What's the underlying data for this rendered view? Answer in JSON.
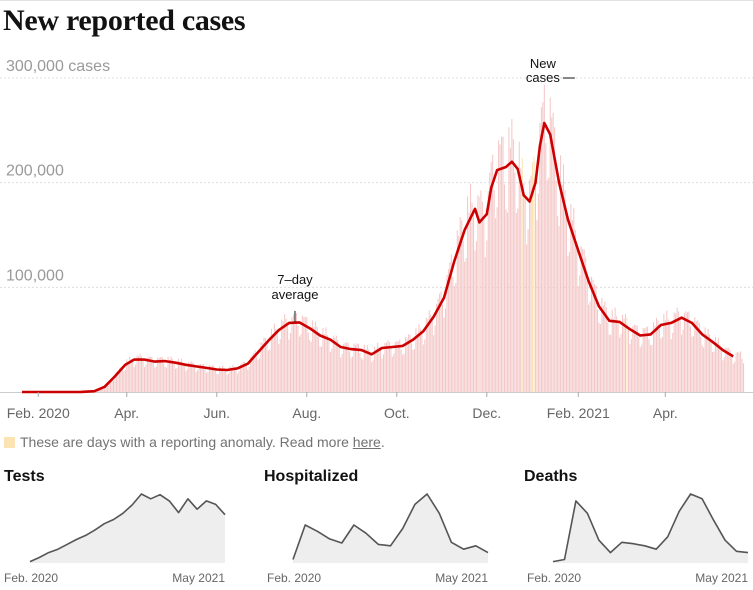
{
  "title": "New reported cases",
  "note": {
    "text": "These are days with a reporting anomaly. Read more ",
    "link": "here",
    "end": ".",
    "swatch_color": "#fbe3b3"
  },
  "colors": {
    "bar": "#f4c7c7",
    "anomaly": "#fbe3b3",
    "line": "#cc0000",
    "grid": "#dddddd",
    "mini_line": "#555555",
    "mini_fill": "#eeeeee"
  },
  "chart_data": [
    {
      "type": "bar",
      "title": "New reported cases",
      "y_unit_label": "cases",
      "ylim": [
        0,
        300000
      ],
      "y_ticks": [
        {
          "value": 300000,
          "label": "300,000 cases"
        },
        {
          "value": 200000,
          "label": "200,000"
        },
        {
          "value": 100000,
          "label": "100,000"
        }
      ],
      "x_range": [
        "2020-01-21",
        "2021-05-25"
      ],
      "x_ticks": [
        {
          "date": "2020-02-01",
          "label": "Feb. 2020"
        },
        {
          "date": "2020-04-01",
          "label": "Apr."
        },
        {
          "date": "2020-06-01",
          "label": "Jun."
        },
        {
          "date": "2020-08-01",
          "label": "Aug."
        },
        {
          "date": "2020-10-01",
          "label": "Oct."
        },
        {
          "date": "2020-12-01",
          "label": "Dec."
        },
        {
          "date": "2021-02-01",
          "label": "Feb. 2021"
        },
        {
          "date": "2021-04-01",
          "label": "Apr."
        }
      ],
      "grid": true,
      "series": [
        {
          "name": "7-day average",
          "style": "line",
          "points": [
            [
              "2020-01-21",
              0
            ],
            [
              "2020-03-01",
              100
            ],
            [
              "2020-03-10",
              800
            ],
            [
              "2020-03-17",
              5000
            ],
            [
              "2020-03-24",
              15000
            ],
            [
              "2020-03-31",
              26000
            ],
            [
              "2020-04-06",
              31000
            ],
            [
              "2020-04-13",
              31000
            ],
            [
              "2020-04-20",
              29000
            ],
            [
              "2020-04-27",
              29500
            ],
            [
              "2020-05-04",
              28000
            ],
            [
              "2020-05-11",
              26000
            ],
            [
              "2020-05-18",
              24500
            ],
            [
              "2020-05-25",
              23000
            ],
            [
              "2020-06-01",
              21500
            ],
            [
              "2020-06-08",
              21000
            ],
            [
              "2020-06-15",
              22500
            ],
            [
              "2020-06-22",
              27000
            ],
            [
              "2020-06-29",
              38000
            ],
            [
              "2020-07-06",
              49000
            ],
            [
              "2020-07-13",
              59000
            ],
            [
              "2020-07-20",
              66000
            ],
            [
              "2020-07-27",
              66500
            ],
            [
              "2020-08-03",
              61000
            ],
            [
              "2020-08-10",
              54000
            ],
            [
              "2020-08-17",
              50000
            ],
            [
              "2020-08-24",
              43000
            ],
            [
              "2020-08-31",
              41000
            ],
            [
              "2020-09-07",
              40000
            ],
            [
              "2020-09-14",
              36000
            ],
            [
              "2020-09-21",
              42000
            ],
            [
              "2020-09-28",
              43000
            ],
            [
              "2020-10-05",
              44000
            ],
            [
              "2020-10-12",
              50000
            ],
            [
              "2020-10-19",
              58000
            ],
            [
              "2020-10-26",
              72000
            ],
            [
              "2020-11-02",
              90000
            ],
            [
              "2020-11-09",
              125000
            ],
            [
              "2020-11-16",
              155000
            ],
            [
              "2020-11-23",
              175000
            ],
            [
              "2020-11-26",
              162000
            ],
            [
              "2020-12-01",
              170000
            ],
            [
              "2020-12-04",
              195000
            ],
            [
              "2020-12-08",
              212000
            ],
            [
              "2020-12-14",
              215000
            ],
            [
              "2020-12-18",
              220000
            ],
            [
              "2020-12-22",
              213000
            ],
            [
              "2020-12-26",
              188000
            ],
            [
              "2020-12-30",
              182000
            ],
            [
              "2021-01-03",
              200000
            ],
            [
              "2021-01-06",
              235000
            ],
            [
              "2021-01-09",
              257000
            ],
            [
              "2021-01-13",
              246000
            ],
            [
              "2021-01-19",
              200000
            ],
            [
              "2021-01-25",
              165000
            ],
            [
              "2021-02-01",
              135000
            ],
            [
              "2021-02-08",
              106000
            ],
            [
              "2021-02-15",
              82000
            ],
            [
              "2021-02-22",
              68000
            ],
            [
              "2021-03-01",
              67000
            ],
            [
              "2021-03-08",
              60000
            ],
            [
              "2021-03-15",
              54000
            ],
            [
              "2021-03-22",
              55000
            ],
            [
              "2021-03-29",
              64000
            ],
            [
              "2021-04-05",
              66000
            ],
            [
              "2021-04-12",
              71000
            ],
            [
              "2021-04-19",
              66000
            ],
            [
              "2021-04-26",
              55000
            ],
            [
              "2021-05-03",
              48000
            ],
            [
              "2021-05-10",
              40000
            ],
            [
              "2021-05-17",
              34000
            ]
          ]
        }
      ],
      "anomaly_days": [
        "2020-11-26",
        "2020-12-25",
        "2021-01-01",
        "2021-01-02",
        "2021-03-06"
      ],
      "annotations": [
        {
          "text": [
            "7–day",
            "average"
          ],
          "date": "2020-07-24",
          "value": 66000
        },
        {
          "text": [
            "New",
            "cases"
          ],
          "date": "2021-01-08",
          "value": 300000
        }
      ]
    },
    {
      "type": "area",
      "title": "Tests",
      "x_labels": [
        "Feb. 2020",
        "May 2021"
      ],
      "values": [
        0.02,
        0.08,
        0.15,
        0.2,
        0.27,
        0.34,
        0.4,
        0.48,
        0.57,
        0.63,
        0.72,
        0.84,
        1.0,
        0.93,
        0.99,
        0.9,
        0.73,
        0.93,
        0.78,
        0.9,
        0.85,
        0.7
      ],
      "ylim": [
        0,
        1
      ]
    },
    {
      "type": "area",
      "title": "Hospitalized",
      "x_labels": [
        "Feb. 2020",
        "May 2021"
      ],
      "values": [
        0.05,
        0.55,
        0.46,
        0.35,
        0.29,
        0.55,
        0.43,
        0.27,
        0.25,
        0.5,
        0.85,
        1.0,
        0.72,
        0.3,
        0.2,
        0.25,
        0.15
      ],
      "ylim": [
        0,
        1
      ]
    },
    {
      "type": "area",
      "title": "Deaths",
      "x_labels": [
        "Feb. 2020",
        "May 2021"
      ],
      "values": [
        0.02,
        0.05,
        0.9,
        0.72,
        0.33,
        0.15,
        0.3,
        0.28,
        0.25,
        0.2,
        0.38,
        0.75,
        1.0,
        0.93,
        0.62,
        0.33,
        0.17,
        0.15
      ],
      "ylim": [
        0,
        1
      ]
    }
  ]
}
